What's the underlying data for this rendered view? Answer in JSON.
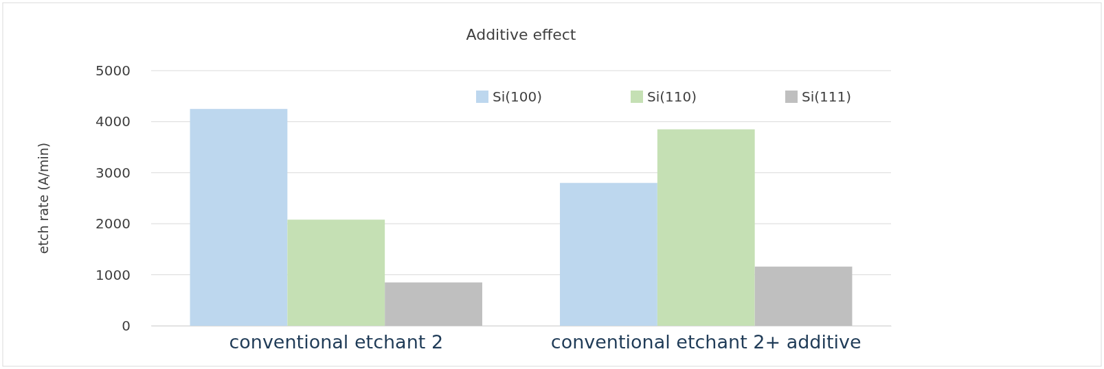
{
  "chart_data": {
    "type": "bar",
    "title": "Additive effect",
    "ylabel": "etch rate (A/min)",
    "categories": [
      "conventional etchant 2",
      "conventional etchant 2+ additive"
    ],
    "series": [
      {
        "name": "Si(100)",
        "color": "#bdd7ee",
        "values": [
          4250,
          2800
        ]
      },
      {
        "name": "Si(110)",
        "color": "#c5e0b4",
        "values": [
          2080,
          3850
        ]
      },
      {
        "name": "Si(111)",
        "color": "#bfbfbf",
        "values": [
          850,
          1160
        ]
      }
    ],
    "ylim": [
      0,
      5000
    ],
    "yticks": [
      0,
      1000,
      2000,
      3000,
      4000,
      5000
    ],
    "grid": "y",
    "legend": "top"
  }
}
